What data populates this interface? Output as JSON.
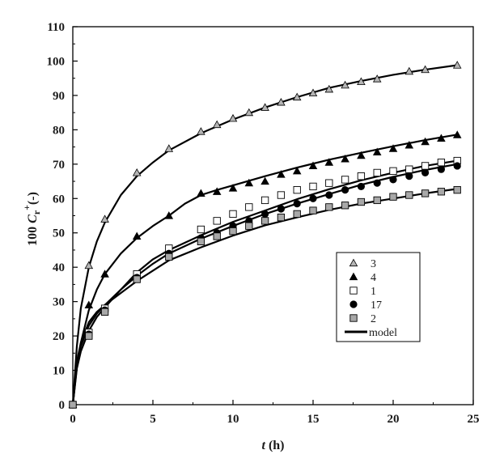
{
  "chart_data": {
    "type": "scatter",
    "title": "",
    "xlabel": {
      "italic": "t",
      "rest": " (h)"
    },
    "ylabel": {
      "prefix": "100 ",
      "italic": "C",
      "sub": "r",
      "sup": "+",
      "suffix": "(-)"
    },
    "xlim": [
      0,
      25
    ],
    "ylim": [
      0,
      110
    ],
    "xticks": [
      "0",
      "5",
      "10",
      "15",
      "20",
      "25"
    ],
    "yticks": [
      "0",
      "10",
      "20",
      "30",
      "40",
      "50",
      "60",
      "70",
      "80",
      "90",
      "100",
      "110"
    ],
    "grid": false,
    "legend_position": "lower-right",
    "legend": [
      {
        "label": "3",
        "marker": "triangle",
        "color": "#b5b5b5"
      },
      {
        "label": "4",
        "marker": "triangle",
        "color": "#000000"
      },
      {
        "label": "1",
        "marker": "square",
        "color": "#ffffff"
      },
      {
        "label": "17",
        "marker": "circle",
        "color": "#000000"
      },
      {
        "label": "2",
        "marker": "square",
        "color": "#a8a8a8"
      },
      {
        "label": "model",
        "marker": "line",
        "color": "#000000"
      }
    ],
    "series": [
      {
        "name": "3",
        "marker": "triangle",
        "fill": "#b5b5b5",
        "x": [
          0,
          1,
          2,
          4,
          6,
          8,
          9,
          10,
          11,
          12,
          13,
          14,
          15,
          16,
          17,
          18,
          19,
          21,
          22,
          24
        ],
        "y": [
          0,
          40.5,
          54,
          67.5,
          74.5,
          79.5,
          81.5,
          83.3,
          85,
          86.5,
          88,
          89.5,
          90.7,
          91.8,
          93,
          94,
          94.8,
          97,
          97.5,
          98.8
        ]
      },
      {
        "name": "4",
        "marker": "triangle",
        "fill": "#000000",
        "x": [
          0,
          1,
          2,
          4,
          6,
          8,
          9,
          10,
          11,
          12,
          13,
          14,
          15,
          16,
          17,
          18,
          19,
          20,
          21,
          22,
          23,
          24
        ],
        "y": [
          0,
          29,
          38,
          49,
          55,
          61.5,
          62,
          63,
          64.5,
          65,
          67,
          68,
          69.5,
          70.5,
          71.5,
          72.5,
          73.5,
          74.5,
          75.5,
          76.5,
          77.5,
          78.5
        ]
      },
      {
        "name": "1",
        "marker": "square",
        "fill": "#ffffff",
        "x": [
          0,
          1,
          2,
          4,
          6,
          8,
          9,
          10,
          11,
          12,
          13,
          14,
          15,
          16,
          17,
          18,
          19,
          20,
          21,
          22,
          23,
          24
        ],
        "y": [
          0,
          21,
          28,
          38,
          45.5,
          51,
          53.5,
          55.5,
          57.5,
          59.5,
          61,
          62.5,
          63.5,
          64.5,
          65.5,
          66.5,
          67.5,
          68,
          68.5,
          69.5,
          70.5,
          71
        ]
      },
      {
        "name": "17",
        "marker": "circle",
        "fill": "#000000",
        "x": [
          0,
          1,
          2,
          4,
          6,
          8,
          9,
          10,
          11,
          12,
          13,
          14,
          15,
          16,
          17,
          18,
          19,
          20,
          21,
          22,
          23,
          24
        ],
        "y": [
          0,
          20.5,
          27.5,
          37,
          44,
          48.5,
          50,
          52,
          53.5,
          55.5,
          57,
          58.5,
          60,
          61,
          62.5,
          63.5,
          64.5,
          65.5,
          66.5,
          67.5,
          68.5,
          69.5
        ]
      },
      {
        "name": "2",
        "marker": "square",
        "fill": "#a8a8a8",
        "x": [
          0,
          1,
          2,
          4,
          6,
          8,
          9,
          10,
          11,
          12,
          13,
          14,
          15,
          16,
          17,
          18,
          19,
          20,
          21,
          22,
          23,
          24
        ],
        "y": [
          0,
          20,
          27,
          36.5,
          43,
          47.5,
          49,
          50.5,
          52,
          53.5,
          54.5,
          55.5,
          56.5,
          57.5,
          58,
          59,
          59.5,
          60.5,
          61,
          61.5,
          62,
          62.5
        ]
      }
    ],
    "model_lines": [
      {
        "name": "3",
        "x": [
          0,
          0.25,
          0.5,
          1,
          1.5,
          2,
          3,
          4,
          5,
          6,
          8,
          10,
          12,
          14,
          16,
          18,
          20,
          22,
          24
        ],
        "y": [
          0,
          17,
          28,
          40,
          47.5,
          53,
          61,
          66.5,
          70.5,
          74,
          79,
          83,
          86.5,
          89.5,
          92.2,
          94.2,
          96,
          97.5,
          98.8
        ]
      },
      {
        "name": "4",
        "x": [
          0,
          0.25,
          0.5,
          1,
          1.5,
          2,
          3,
          4,
          5,
          6,
          7,
          8,
          9,
          10,
          12,
          14,
          16,
          18,
          20,
          22,
          24
        ],
        "y": [
          0,
          11,
          18,
          27.5,
          33.5,
          38,
          44,
          48.5,
          52,
          55,
          58.5,
          61,
          62.5,
          63.8,
          66.5,
          69,
          71.3,
          73.3,
          75.2,
          77,
          78.6
        ]
      },
      {
        "name": "1",
        "x": [
          0,
          0.25,
          0.5,
          1,
          1.5,
          2,
          3,
          4,
          5,
          6,
          8,
          10,
          12,
          14,
          16,
          18,
          20,
          22,
          24
        ],
        "y": [
          0,
          10.5,
          15.5,
          21.5,
          25.5,
          28.3,
          33.5,
          38.5,
          42.3,
          45,
          49.3,
          53.2,
          56.5,
          59.8,
          62.7,
          65.3,
          67.5,
          69.5,
          71
        ]
      },
      {
        "name": "17",
        "x": [
          0,
          0.25,
          0.5,
          1,
          1.5,
          2,
          3,
          4,
          5,
          6,
          8,
          10,
          12,
          14,
          16,
          18,
          20,
          22,
          24
        ],
        "y": [
          0,
          12,
          17,
          23,
          26.5,
          29,
          33.5,
          37.5,
          41,
          44,
          48.3,
          52,
          55.5,
          58.5,
          61.3,
          64,
          66.3,
          68.3,
          70
        ]
      },
      {
        "name": "2",
        "x": [
          0,
          0.25,
          0.5,
          1,
          1.5,
          2,
          3,
          4,
          5,
          6,
          8,
          10,
          12,
          14,
          16,
          18,
          20,
          22,
          24
        ],
        "y": [
          0,
          12.5,
          18,
          24,
          27,
          29,
          32.5,
          36,
          39,
          42,
          45.8,
          49.2,
          52.2,
          54.5,
          56.7,
          58.5,
          60,
          61.5,
          62.8
        ]
      }
    ]
  }
}
